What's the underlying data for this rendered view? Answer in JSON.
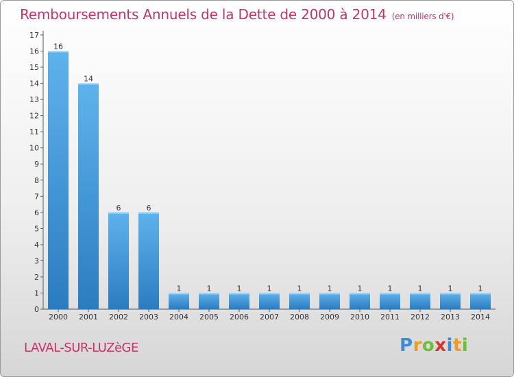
{
  "title": "Remboursements Annuels de la Dette de 2000 à 2014",
  "subtitle": "(en milliers d'€)",
  "commune": "LAVAL-SUR-LUZèGE",
  "logo": {
    "letters": [
      {
        "ch": "P",
        "color": "#3a8fd4"
      },
      {
        "ch": "r",
        "color": "#f29a1c"
      },
      {
        "ch": "o",
        "color": "#6cbf3a"
      },
      {
        "ch": "x",
        "color": "#d8342a"
      },
      {
        "ch": "i",
        "color": "#3a8fd4"
      },
      {
        "ch": "t",
        "color": "#f29a1c"
      },
      {
        "ch": "i",
        "color": "#6cbf3a"
      }
    ]
  },
  "colors": {
    "bar_light": "#5fb3ec",
    "bar_dark": "#2a7cc0",
    "axis": "#555555",
    "text": "#333333"
  },
  "chart_data": {
    "type": "bar",
    "categories": [
      "2000",
      "2001",
      "2002",
      "2003",
      "2004",
      "2005",
      "2006",
      "2007",
      "2008",
      "2009",
      "2010",
      "2011",
      "2012",
      "2013",
      "2014"
    ],
    "values": [
      16,
      14,
      6,
      6,
      1,
      1,
      1,
      1,
      1,
      1,
      1,
      1,
      1,
      1,
      1
    ],
    "ylim": [
      0,
      17
    ],
    "yticks": [
      0,
      1,
      2,
      3,
      4,
      5,
      6,
      7,
      8,
      9,
      10,
      11,
      12,
      13,
      14,
      15,
      16,
      17
    ],
    "grid": false,
    "legend": "none"
  }
}
